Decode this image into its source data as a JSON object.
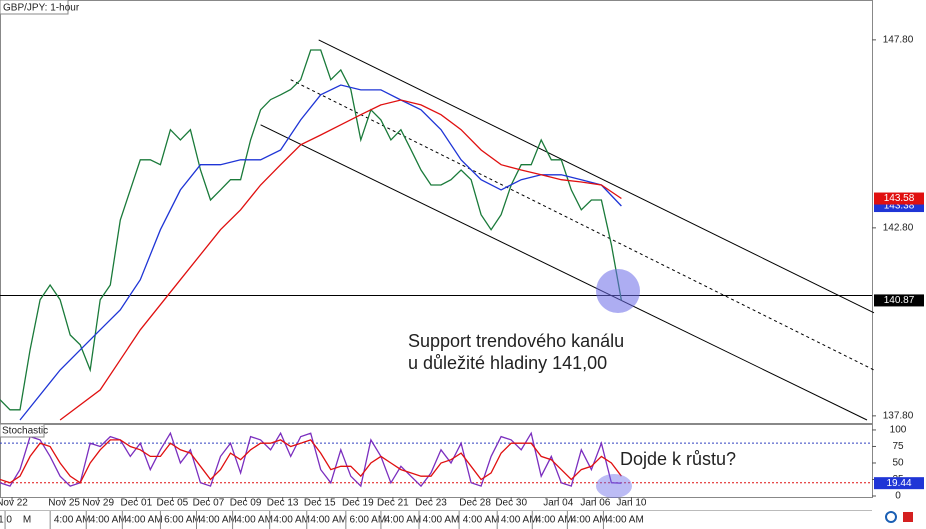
{
  "chart_data": [
    {
      "type": "line",
      "title": "GBP/JPY: 1-hour",
      "annotation": [
        "Support trendového kanálu",
        "u důležité hladiny 141,00"
      ],
      "xlim": [
        0,
        87
      ],
      "ylim": [
        137.61,
        148.86
      ],
      "yticks": [
        {
          "value": 147.8,
          "label": "147.80"
        },
        {
          "value": 142.8,
          "label": "142.80"
        },
        {
          "value": 137.8,
          "label": "137.80"
        }
      ],
      "hline": {
        "value": 141.0,
        "color": "#000000"
      },
      "series": [
        {
          "name": "GBP/JPY",
          "color": "#1a7a3a",
          "values": [
            138.23,
            137.96,
            137.96,
            139.56,
            140.89,
            141.28,
            140.89,
            139.95,
            139.69,
            139.02,
            140.89,
            141.28,
            143.01,
            143.81,
            144.61,
            144.61,
            144.48,
            145.41,
            145.14,
            145.41,
            144.34,
            143.54,
            143.81,
            144.08,
            144.08,
            145.14,
            145.94,
            146.21,
            146.34,
            146.48,
            146.74,
            147.53,
            147.53,
            146.74,
            147.0,
            146.48,
            145.14,
            145.94,
            145.67,
            145.14,
            145.41,
            144.88,
            144.34,
            143.94,
            143.94,
            144.08,
            144.34,
            144.08,
            143.15,
            142.75,
            143.15,
            143.94,
            144.48,
            144.48,
            145.14,
            144.61,
            144.61,
            143.81,
            143.28,
            143.54,
            143.54,
            142.35,
            140.87
          ]
        },
        {
          "name": "MA blue",
          "color": "#1f35d6",
          "x": [
            2,
            6,
            10,
            12,
            14,
            16,
            18,
            20,
            22,
            24,
            26,
            28,
            30,
            32,
            34,
            36,
            38,
            40,
            42,
            44,
            46,
            48,
            50,
            52,
            54,
            56,
            58,
            60,
            62
          ],
          "values": [
            137.69,
            139.02,
            140.09,
            140.62,
            141.42,
            142.75,
            143.81,
            144.48,
            144.48,
            144.61,
            144.61,
            144.87,
            145.67,
            146.34,
            146.6,
            146.47,
            146.47,
            146.2,
            145.94,
            145.41,
            144.61,
            144.08,
            143.81,
            144.08,
            144.21,
            144.21,
            144.08,
            143.94,
            143.38
          ]
        },
        {
          "name": "MA red",
          "color": "#e01010",
          "x": [
            6,
            10,
            14,
            18,
            22,
            24,
            26,
            28,
            30,
            32,
            34,
            36,
            38,
            40,
            42,
            44,
            46,
            48,
            50,
            52,
            54,
            56,
            58,
            60,
            62
          ],
          "values": [
            137.69,
            138.49,
            140.09,
            141.42,
            142.75,
            143.28,
            143.94,
            144.48,
            145.01,
            145.27,
            145.54,
            145.81,
            146.07,
            146.2,
            146.07,
            145.81,
            145.41,
            144.87,
            144.48,
            144.34,
            144.21,
            144.08,
            144.02,
            143.94,
            143.58
          ]
        }
      ],
      "channel": [
        {
          "x": [
            31.8,
            87.2
          ],
          "values": [
            147.8,
            140.54
          ],
          "dash": false
        },
        {
          "x": [
            29,
            87.2
          ],
          "values": [
            146.74,
            139.02
          ],
          "dash": true
        },
        {
          "x": [
            26,
            86.5
          ],
          "values": [
            145.54,
            137.69
          ],
          "dash": false
        }
      ]
    },
    {
      "type": "line",
      "title": "Stochastic",
      "annotation": "Dojde k růstu?",
      "xlim": [
        0,
        87
      ],
      "ylim": [
        -1.5,
        109
      ],
      "yticks": [
        100,
        75,
        50,
        25,
        0
      ],
      "levels": [
        80,
        20
      ],
      "xticks": [
        {
          "value": 1.2,
          "label": "Nov 22"
        },
        {
          "value": 6.4,
          "label": "Nov 25"
        },
        {
          "value": 9.8,
          "label": "Nov 29"
        },
        {
          "value": 13.6,
          "label": "Dec 01"
        },
        {
          "value": 17.2,
          "label": "Dec 05"
        },
        {
          "value": 20.8,
          "label": "Dec 07"
        },
        {
          "value": 24.5,
          "label": "Dec 09"
        },
        {
          "value": 28.2,
          "label": "Dec 13"
        },
        {
          "value": 31.9,
          "label": "Dec 15"
        },
        {
          "value": 35.7,
          "label": "Dec 19"
        },
        {
          "value": 39.2,
          "label": "Dec 21"
        },
        {
          "value": 43,
          "label": "Dec 23"
        },
        {
          "value": 47.4,
          "label": "Dec 28"
        },
        {
          "value": 51,
          "label": "Dec 30"
        },
        {
          "value": 55.7,
          "label": "Jan 04"
        },
        {
          "value": 59.4,
          "label": "Jan 06"
        },
        {
          "value": 63,
          "label": "Jan 10"
        }
      ],
      "xticks2": [
        {
          "value": 0.5,
          "label": "1:0"
        },
        {
          "value": 2.7,
          "label": "M"
        },
        {
          "value": 7.2,
          "label": "4:00 AM"
        },
        {
          "value": 10.8,
          "label": "4:00 AM"
        },
        {
          "value": 14.4,
          "label": "4:00 AM"
        },
        {
          "value": 18.2,
          "label": "6:00 AM"
        },
        {
          "value": 21.8,
          "label": "4:00 AM"
        },
        {
          "value": 25.4,
          "label": "4:00 AM"
        },
        {
          "value": 29.1,
          "label": "4:00 AM"
        },
        {
          "value": 32.8,
          "label": "4:00 AM"
        },
        {
          "value": 36.7,
          "label": "6:00 AM"
        },
        {
          "value": 40.2,
          "label": "4:00 AM"
        },
        {
          "value": 44,
          "label": "4:00 AM"
        },
        {
          "value": 48,
          "label": "4:00 AM"
        },
        {
          "value": 51.8,
          "label": "4:00 AM"
        },
        {
          "value": 55.3,
          "label": "4:00 AM"
        },
        {
          "value": 58.8,
          "label": "4:00 AM"
        },
        {
          "value": 62.4,
          "label": "4:00 AM"
        }
      ],
      "series": [
        {
          "name": "%K",
          "color": "#7b2fbf",
          "values": [
            20,
            15,
            40,
            90,
            85,
            60,
            30,
            15,
            20,
            80,
            75,
            90,
            85,
            60,
            80,
            40,
            70,
            95,
            50,
            70,
            20,
            15,
            60,
            80,
            35,
            90,
            85,
            70,
            95,
            60,
            90,
            95,
            40,
            20,
            70,
            30,
            15,
            85,
            60,
            20,
            45,
            30,
            15,
            35,
            70,
            50,
            80,
            20,
            15,
            60,
            90,
            85,
            70,
            95,
            30,
            60,
            20,
            15,
            70,
            40,
            80,
            20,
            19.44
          ]
        },
        {
          "name": "%D",
          "color": "#e01010",
          "values": [
            25,
            20,
            30,
            60,
            80,
            75,
            50,
            30,
            20,
            50,
            70,
            85,
            85,
            75,
            70,
            60,
            60,
            80,
            70,
            65,
            45,
            25,
            40,
            65,
            55,
            70,
            80,
            80,
            85,
            75,
            80,
            85,
            65,
            40,
            45,
            45,
            30,
            50,
            60,
            50,
            40,
            35,
            30,
            30,
            50,
            55,
            65,
            45,
            25,
            35,
            65,
            80,
            80,
            80,
            60,
            55,
            40,
            25,
            40,
            45,
            60,
            50,
            30
          ]
        }
      ]
    }
  ]
}
